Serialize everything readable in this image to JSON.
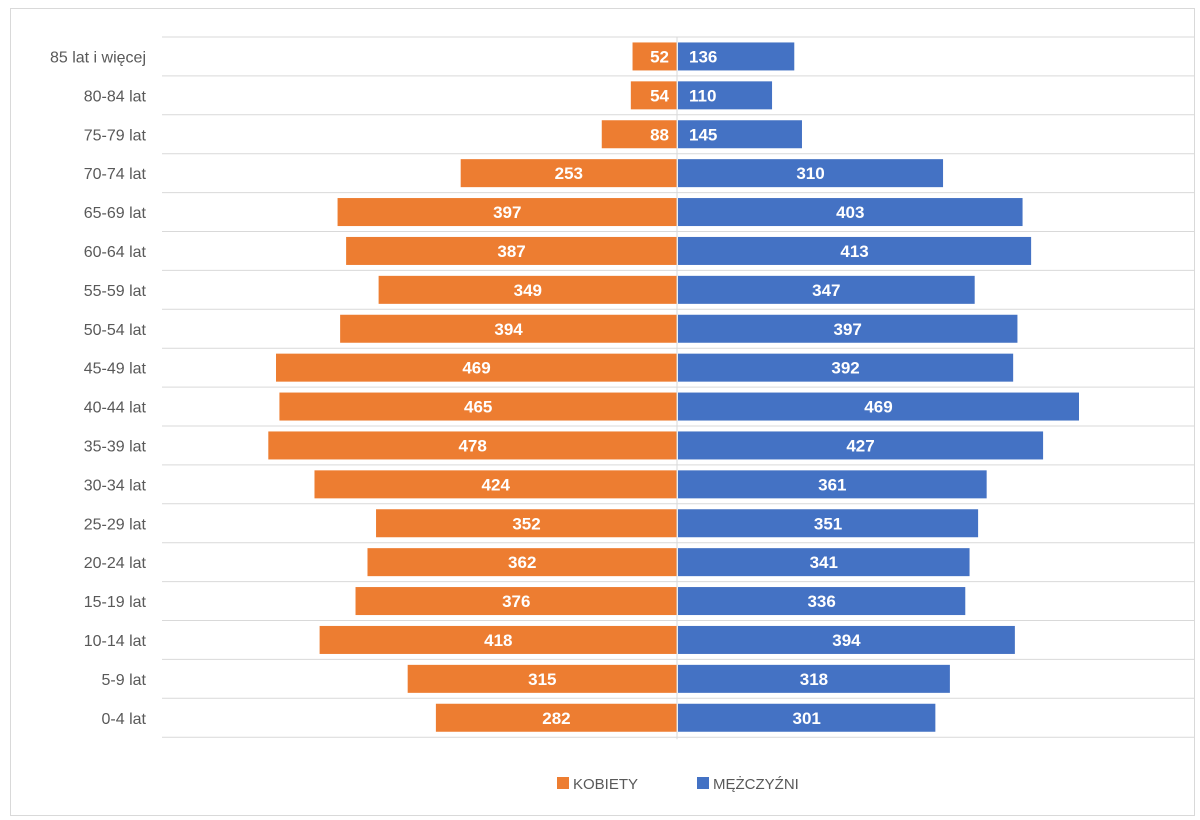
{
  "chart_data": {
    "type": "bar",
    "orientation": "horizontal",
    "layout": "population-pyramid",
    "categories": [
      "0-4 lat",
      "5-9 lat",
      "10-14 lat",
      "15-19 lat",
      "20-24 lat",
      "25-29 lat",
      "30-34 lat",
      "35-39 lat",
      "40-44 lat",
      "45-49 lat",
      "50-54 lat",
      "55-59 lat",
      "60-64 lat",
      "65-69 lat",
      "70-74 lat",
      "75-79 lat",
      "80-84 lat",
      "85 lat i więcej"
    ],
    "series": [
      {
        "name": "KOBIETY",
        "color": "#ed7d31",
        "side": "left",
        "values": [
          282,
          315,
          418,
          376,
          362,
          352,
          424,
          478,
          465,
          469,
          394,
          349,
          387,
          397,
          253,
          88,
          54,
          52
        ]
      },
      {
        "name": "MĘŻCZYŹNI",
        "color": "#4472c4",
        "side": "right",
        "values": [
          301,
          318,
          394,
          336,
          341,
          351,
          361,
          427,
          469,
          392,
          397,
          347,
          413,
          403,
          310,
          145,
          110,
          136
        ]
      }
    ],
    "data_labels": true,
    "grid": "horizontal",
    "legend": "bottom-center"
  }
}
